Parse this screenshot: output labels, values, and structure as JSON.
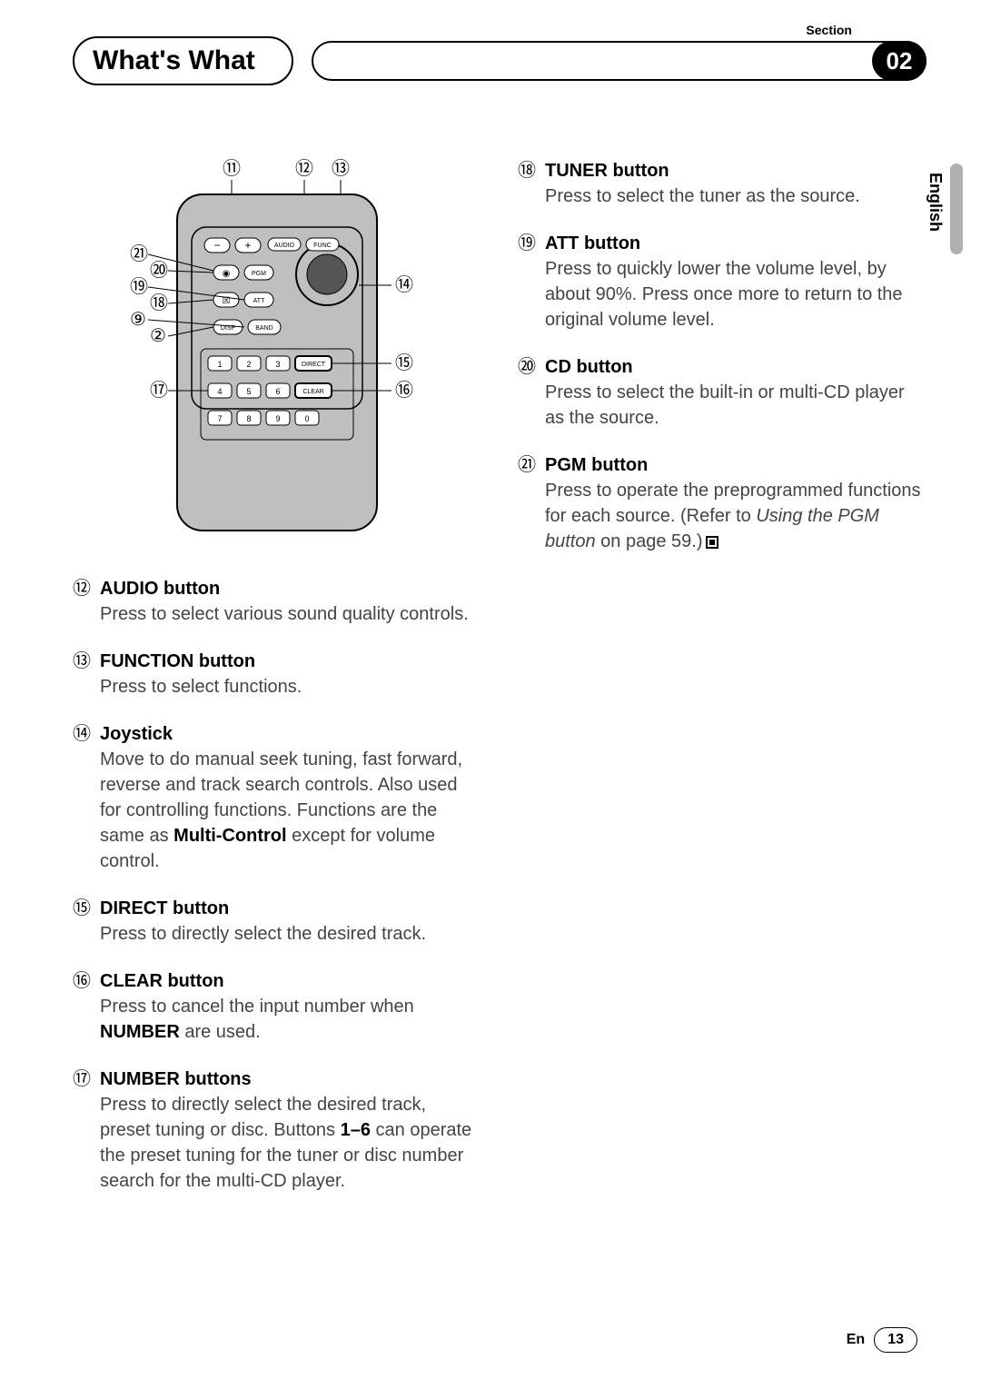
{
  "header": {
    "title": "What's What",
    "section_label": "Section",
    "section_number": "02"
  },
  "language_tab": "English",
  "footer": {
    "lang_code": "En",
    "page": "13"
  },
  "remote": {
    "callouts_top": [
      "⑪",
      "⑫",
      "⑬"
    ],
    "callouts_left": [
      "㉑",
      "⑳",
      "⑲",
      "⑱",
      "⑨",
      "②",
      "⑰"
    ],
    "callouts_right": [
      "⑭",
      "⑮",
      "⑯"
    ],
    "btn_minus": "−",
    "btn_plus": "+",
    "btn_audio": "AUDIO",
    "btn_func": "FUNC",
    "btn_cd": "◉",
    "btn_pgm": "PGM",
    "btn_tuner": "☒",
    "btn_att": "ATT",
    "btn_disp": "DISP",
    "btn_band": "BAND",
    "btn_direct": "DIRECT",
    "btn_clear": "CLEAR",
    "nums": [
      "1",
      "2",
      "3",
      "4",
      "5",
      "6",
      "7",
      "8",
      "9",
      "0"
    ]
  },
  "items_left": [
    {
      "num": "⑫",
      "title": "AUDIO button",
      "body": "Press to select various sound quality controls."
    },
    {
      "num": "⑬",
      "title": "FUNCTION button",
      "body": "Press to select functions."
    },
    {
      "num": "⑭",
      "title": "Joystick",
      "body_pre": "Move to do manual seek tuning, fast forward, reverse and track search controls. Also used for controlling functions. Functions are the same as ",
      "body_bold": "Multi-Control",
      "body_post": " except for volume control."
    },
    {
      "num": "⑮",
      "title": "DIRECT button",
      "body": "Press to directly select the desired track."
    },
    {
      "num": "⑯",
      "title": "CLEAR button",
      "body_pre": "Press to cancel the input number when ",
      "body_bold": "NUMBER",
      "body_post": " are used."
    },
    {
      "num": "⑰",
      "title": "NUMBER buttons",
      "body_pre": "Press to directly select the desired track, preset tuning or disc. Buttons ",
      "body_bold": "1–6",
      "body_post": " can operate the preset tuning for the tuner or disc number search for the multi-CD player."
    }
  ],
  "items_right": [
    {
      "num": "⑱",
      "title": "TUNER button",
      "body": "Press to select the tuner as the source."
    },
    {
      "num": "⑲",
      "title": "ATT button",
      "body": "Press to quickly lower the volume level, by about 90%. Press once more to return to the original volume level."
    },
    {
      "num": "⑳",
      "title": "CD button",
      "body": "Press to select the built-in or multi-CD player as the source."
    },
    {
      "num": "㉑",
      "title": "PGM button",
      "body_pre": "Press to operate the preprogrammed functions for each source. (Refer to ",
      "body_ital": "Using the PGM button",
      "body_post": " on page 59.)",
      "end_mark": true
    }
  ]
}
